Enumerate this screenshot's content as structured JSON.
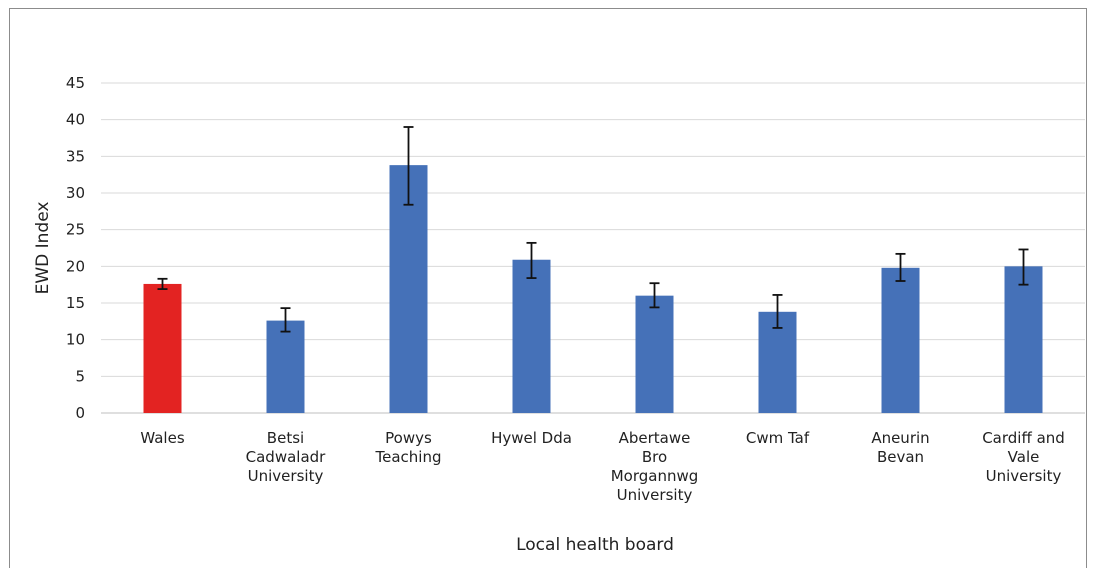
{
  "chart_data": {
    "type": "bar",
    "title": "",
    "xlabel": "Local health board",
    "ylabel": "EWD Index",
    "ylim": [
      0,
      45
    ],
    "yticks": [
      0,
      5,
      10,
      15,
      20,
      25,
      30,
      35,
      40,
      45
    ],
    "grid": "horizontal",
    "legend": "none",
    "categories": [
      [
        "Wales"
      ],
      [
        "Betsi",
        "Cadwaladr",
        "University"
      ],
      [
        "Powys",
        "Teaching"
      ],
      [
        "Hywel Dda"
      ],
      [
        "Abertawe",
        "Bro",
        "Morgannwg",
        "University"
      ],
      [
        "Cwm Taf"
      ],
      [
        "Aneurin",
        "Bevan"
      ],
      [
        "Cardiff and",
        "Vale",
        "University"
      ]
    ],
    "values": [
      17.6,
      12.6,
      33.8,
      20.9,
      16.0,
      13.8,
      19.8,
      20.0
    ],
    "error_low": [
      16.9,
      11.1,
      28.4,
      18.4,
      14.4,
      11.6,
      18.0,
      17.5
    ],
    "error_high": [
      18.3,
      14.3,
      39.0,
      23.2,
      17.7,
      16.1,
      21.7,
      22.3
    ],
    "colors": [
      "#e32322",
      "#4571b8",
      "#4571b8",
      "#4571b8",
      "#4571b8",
      "#4571b8",
      "#4571b8",
      "#4571b8"
    ],
    "gridline_color": "#d9d9d9",
    "axis_color": "#bfbfbf",
    "error_bar_color": "#111111"
  }
}
